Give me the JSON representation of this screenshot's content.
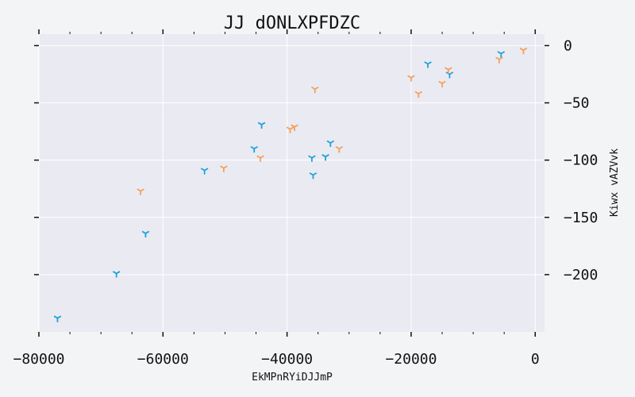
{
  "chart_data": {
    "type": "scatter",
    "title": "JJ dONLXPFDZC",
    "xlabel": "EkMPnRYiDJJmP",
    "ylabel": "Kiwx vAZVvk",
    "xlim": [
      -80000,
      1500
    ],
    "ylim": [
      -250,
      10
    ],
    "xticks": [
      -80000,
      -60000,
      -40000,
      -20000,
      0
    ],
    "xtick_labels": [
      "−80000",
      "−60000",
      "−40000",
      "−20000",
      "0"
    ],
    "yticks": [
      0,
      -50,
      -100,
      -150,
      -200
    ],
    "ytick_labels": [
      "0",
      "−50",
      "−100",
      "−150",
      "−200"
    ],
    "y_axis_side": "right",
    "grid": true,
    "legend": "none",
    "series": [
      {
        "color": "#1aa3d9",
        "marker": "tri_down",
        "points": [
          [
            -77000,
            -238
          ],
          [
            -67500,
            -199
          ],
          [
            -62800,
            -164
          ],
          [
            -53300,
            -109
          ],
          [
            -45300,
            -90
          ],
          [
            -44100,
            -69
          ],
          [
            -35800,
            -113
          ],
          [
            -36000,
            -98
          ],
          [
            -33800,
            -97
          ],
          [
            -33000,
            -85
          ],
          [
            -17300,
            -16
          ],
          [
            -13800,
            -25
          ],
          [
            -5500,
            -7
          ]
        ]
      },
      {
        "color": "#f5a05a",
        "marker": "tri_down",
        "points": [
          [
            -63600,
            -127
          ],
          [
            -50200,
            -107
          ],
          [
            -44300,
            -98
          ],
          [
            -39500,
            -73
          ],
          [
            -38800,
            -71
          ],
          [
            -35500,
            -38
          ],
          [
            -31600,
            -90
          ],
          [
            -20000,
            -28
          ],
          [
            -18800,
            -42
          ],
          [
            -15000,
            -33
          ],
          [
            -14000,
            -21
          ],
          [
            -5800,
            -12
          ],
          [
            -1900,
            -4
          ]
        ]
      }
    ]
  }
}
